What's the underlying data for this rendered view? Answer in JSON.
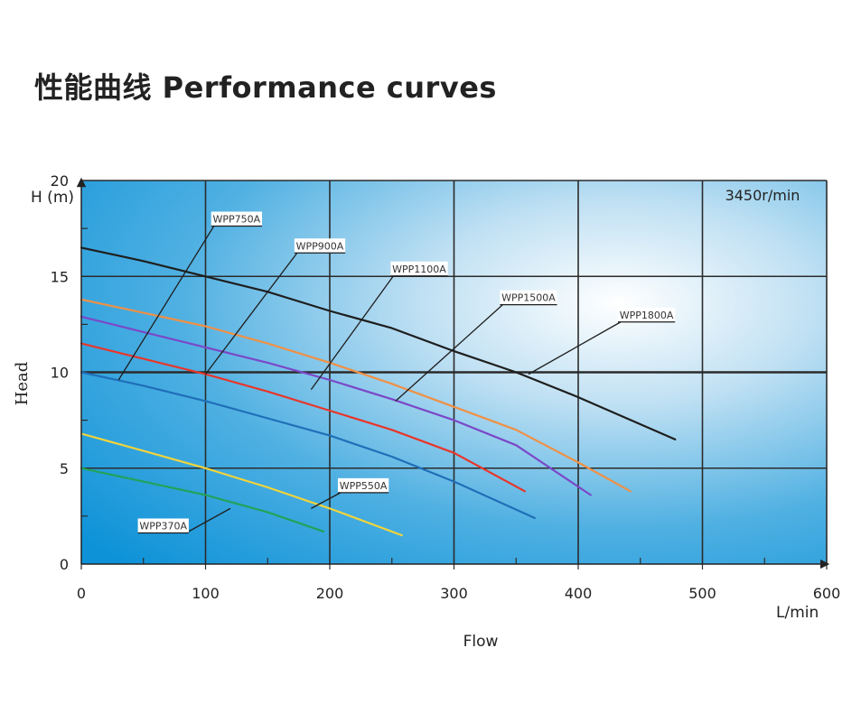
{
  "page": {
    "title": "性能曲线 Performance curves"
  },
  "chart_data": {
    "type": "line",
    "title": "",
    "xlabel": "Flow",
    "ylabel": "Head",
    "x_unit": "L/min",
    "y_unit": "H (m)",
    "xlim": [
      0,
      600
    ],
    "ylim": [
      0,
      20
    ],
    "x_ticks": [
      0,
      100,
      200,
      300,
      400,
      500,
      600
    ],
    "y_ticks": [
      0,
      5,
      10,
      15,
      20
    ],
    "grid": true,
    "annotation": "3450r/min",
    "series": [
      {
        "name": "WPP370A",
        "color": "#21a35a",
        "points": [
          [
            0,
            5.0
          ],
          [
            50,
            4.3
          ],
          [
            100,
            3.6
          ],
          [
            150,
            2.7
          ],
          [
            195,
            1.7
          ]
        ]
      },
      {
        "name": "WPP550A",
        "color": "#f2d43a",
        "points": [
          [
            0,
            6.8
          ],
          [
            50,
            5.9
          ],
          [
            100,
            5.0
          ],
          [
            150,
            4.0
          ],
          [
            200,
            2.9
          ],
          [
            258,
            1.5
          ]
        ]
      },
      {
        "name": "WPP750A",
        "color": "#1f6fb8",
        "points": [
          [
            0,
            10.0
          ],
          [
            50,
            9.3
          ],
          [
            100,
            8.5
          ],
          [
            150,
            7.6
          ],
          [
            200,
            6.7
          ],
          [
            250,
            5.6
          ],
          [
            300,
            4.3
          ],
          [
            365,
            2.4
          ]
        ]
      },
      {
        "name": "WPP900A",
        "color": "#e8362a",
        "points": [
          [
            0,
            11.5
          ],
          [
            50,
            10.7
          ],
          [
            100,
            9.9
          ],
          [
            150,
            9.0
          ],
          [
            200,
            8.0
          ],
          [
            250,
            7.0
          ],
          [
            300,
            5.8
          ],
          [
            357,
            3.8
          ]
        ]
      },
      {
        "name": "WPP1100A",
        "color": "#7b48c8",
        "points": [
          [
            0,
            12.9
          ],
          [
            50,
            12.1
          ],
          [
            100,
            11.3
          ],
          [
            150,
            10.5
          ],
          [
            200,
            9.6
          ],
          [
            250,
            8.6
          ],
          [
            300,
            7.5
          ],
          [
            350,
            6.2
          ],
          [
            410,
            3.6
          ]
        ]
      },
      {
        "name": "WPP1500A",
        "color": "#f09045",
        "points": [
          [
            0,
            13.8
          ],
          [
            50,
            13.1
          ],
          [
            100,
            12.4
          ],
          [
            150,
            11.5
          ],
          [
            200,
            10.5
          ],
          [
            250,
            9.4
          ],
          [
            300,
            8.2
          ],
          [
            350,
            7.0
          ],
          [
            400,
            5.3
          ],
          [
            442,
            3.8
          ]
        ]
      },
      {
        "name": "WPP1800A",
        "color": "#1e1e1e",
        "points": [
          [
            0,
            16.5
          ],
          [
            50,
            15.8
          ],
          [
            100,
            15.0
          ],
          [
            150,
            14.2
          ],
          [
            200,
            13.2
          ],
          [
            250,
            12.3
          ],
          [
            300,
            11.1
          ],
          [
            350,
            10.0
          ],
          [
            400,
            8.7
          ],
          [
            478,
            6.5
          ]
        ]
      }
    ],
    "curve_labels": [
      {
        "name": "WPP750A",
        "text_at": [
          125,
          18.0
        ],
        "leader_to": [
          30,
          9.6
        ]
      },
      {
        "name": "WPP900A",
        "text_at": [
          192,
          16.6
        ],
        "leader_to": [
          100,
          9.9
        ]
      },
      {
        "name": "WPP1100A",
        "text_at": [
          272,
          15.4
        ],
        "leader_to": [
          185,
          9.1
        ]
      },
      {
        "name": "WPP1500A",
        "text_at": [
          360,
          13.9
        ],
        "leader_to": [
          253,
          8.5
        ]
      },
      {
        "name": "WPP1800A",
        "text_at": [
          455,
          13.0
        ],
        "leader_to": [
          360,
          9.9
        ]
      },
      {
        "name": "WPP550A",
        "text_at": [
          227,
          4.1
        ],
        "leader_to": [
          185,
          2.9
        ]
      },
      {
        "name": "WPP370A",
        "text_at": [
          66,
          2.0
        ],
        "leader_to": [
          120,
          2.9
        ]
      }
    ]
  }
}
